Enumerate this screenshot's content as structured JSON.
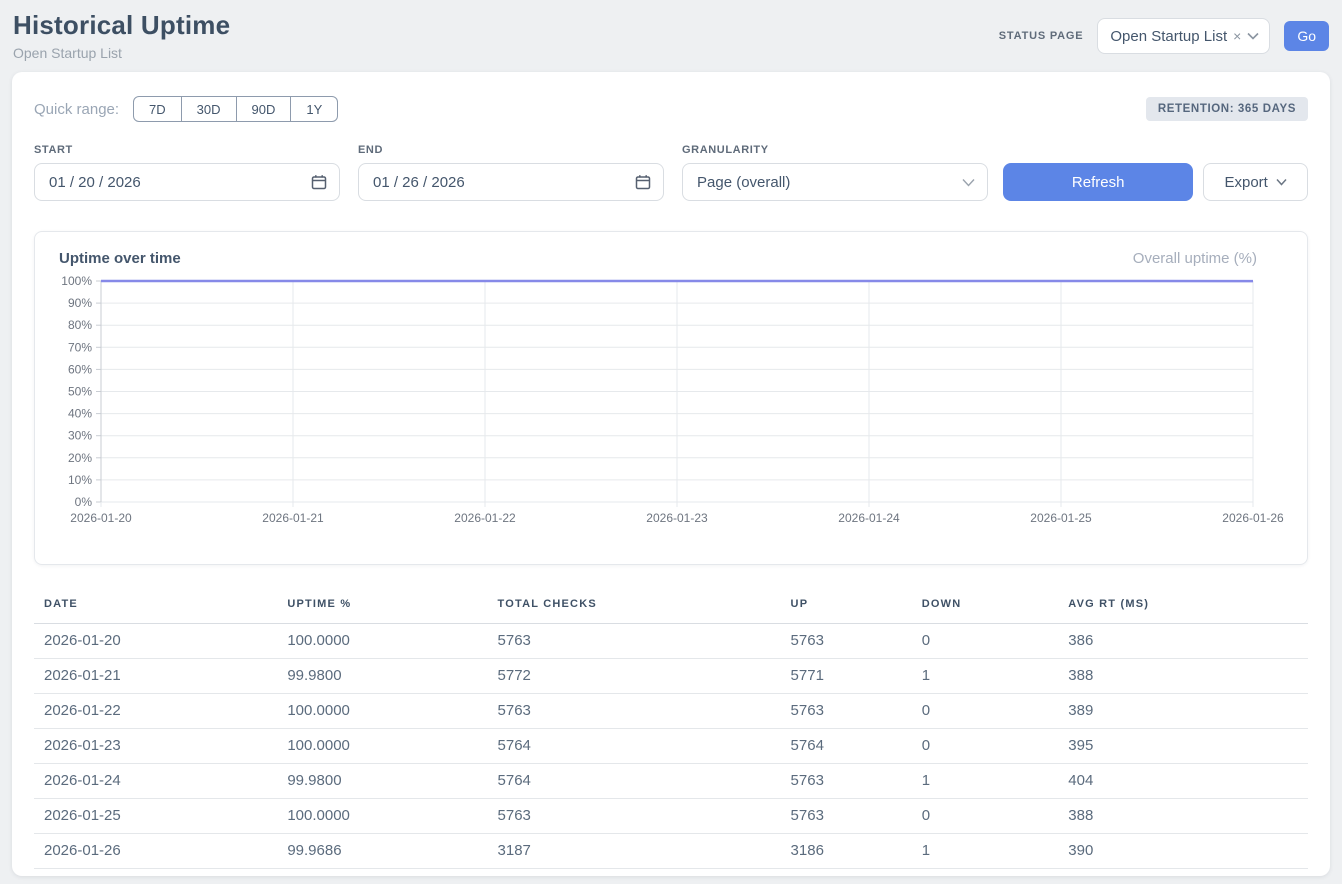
{
  "page": {
    "title": "Historical Uptime",
    "subtitle": "Open Startup List"
  },
  "header": {
    "status_page_label": "STATUS PAGE",
    "status_page_value": "Open Startup List",
    "clear_icon": "×",
    "go_label": "Go"
  },
  "filters": {
    "quick_range_label": "Quick range:",
    "quick_ranges": [
      "7D",
      "30D",
      "90D",
      "1Y"
    ],
    "retention_badge": "RETENTION: 365 DAYS",
    "start_label": "START",
    "start_value": "01 / 20 / 2026",
    "end_label": "END",
    "end_value": "01 / 26 / 2026",
    "granularity_label": "GRANULARITY",
    "granularity_value": "Page (overall)",
    "refresh_label": "Refresh",
    "export_label": "Export"
  },
  "chart": {
    "title": "Uptime over time",
    "legend": "Overall uptime (%)"
  },
  "chart_data": {
    "type": "line",
    "title": "Uptime over time",
    "x": [
      "2026-01-20",
      "2026-01-21",
      "2026-01-22",
      "2026-01-23",
      "2026-01-24",
      "2026-01-25",
      "2026-01-26"
    ],
    "series": [
      {
        "name": "Overall uptime (%)",
        "values": [
          100.0,
          99.98,
          100.0,
          100.0,
          99.98,
          100.0,
          99.9686
        ]
      }
    ],
    "ylim": [
      0,
      100
    ],
    "y_ticks": [
      "0%",
      "10%",
      "20%",
      "30%",
      "40%",
      "50%",
      "60%",
      "70%",
      "80%",
      "90%",
      "100%"
    ],
    "grid": true,
    "legend_position": "top-right",
    "line_color": "#8689e8",
    "grid_color": "#e6e9ec",
    "axis_color": "#c9cdd3",
    "tick_label_color": "#6e7580"
  },
  "table": {
    "columns": [
      "DATE",
      "UPTIME %",
      "TOTAL CHECKS",
      "UP",
      "DOWN",
      "AVG RT (MS)"
    ],
    "rows": [
      [
        "2026-01-20",
        "100.0000",
        "5763",
        "5763",
        "0",
        "386"
      ],
      [
        "2026-01-21",
        "99.9800",
        "5772",
        "5771",
        "1",
        "388"
      ],
      [
        "2026-01-22",
        "100.0000",
        "5763",
        "5763",
        "0",
        "389"
      ],
      [
        "2026-01-23",
        "100.0000",
        "5764",
        "5764",
        "0",
        "395"
      ],
      [
        "2026-01-24",
        "99.9800",
        "5764",
        "5763",
        "1",
        "404"
      ],
      [
        "2026-01-25",
        "100.0000",
        "5763",
        "5763",
        "0",
        "388"
      ],
      [
        "2026-01-26",
        "99.9686",
        "3187",
        "3186",
        "1",
        "390"
      ]
    ]
  },
  "colors": {
    "accent_blue": "#5c85e6",
    "line_purple": "#8689e8"
  }
}
